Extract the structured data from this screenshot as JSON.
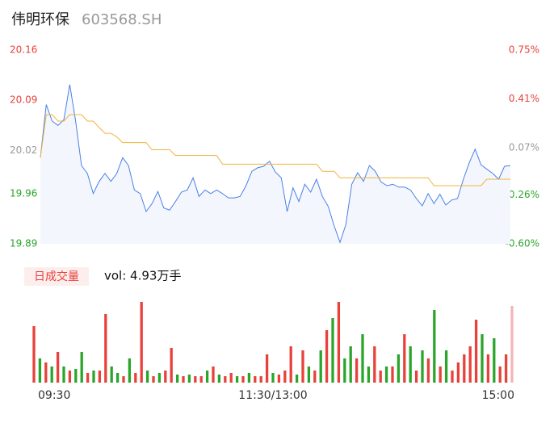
{
  "chart_data": [
    {
      "type": "line",
      "title": "伟明环保",
      "subtitle": "603568.SH",
      "x": [
        0,
        3,
        6,
        9,
        12,
        15,
        18,
        21,
        24,
        27,
        30,
        33,
        36,
        39,
        42,
        45,
        48,
        51,
        54,
        57,
        60,
        63,
        66,
        69,
        72,
        75,
        78,
        81,
        84,
        87,
        90,
        93,
        96,
        99,
        102,
        105,
        108,
        111,
        114,
        117,
        120,
        123,
        126,
        129,
        132,
        135,
        138,
        141,
        144,
        147,
        150,
        153,
        156,
        159,
        162,
        165,
        168,
        171,
        174,
        177,
        180,
        183,
        186,
        189,
        192,
        195,
        198,
        201,
        204,
        207,
        210,
        213,
        216,
        219,
        222,
        225,
        228,
        231,
        234,
        237,
        240
      ],
      "xlim": [
        0,
        240
      ],
      "series": [
        {
          "color": "#4a80e8",
          "values": [
            20.01,
            20.084,
            20.061,
            20.055,
            20.063,
            20.112,
            20.061,
            19.999,
            19.988,
            19.96,
            19.977,
            19.988,
            19.977,
            19.988,
            20.01,
            19.999,
            19.965,
            19.96,
            19.935,
            19.946,
            19.963,
            19.94,
            19.937,
            19.949,
            19.962,
            19.965,
            19.982,
            19.956,
            19.965,
            19.96,
            19.965,
            19.96,
            19.954,
            19.954,
            19.956,
            19.971,
            19.991,
            19.996,
            19.998,
            20.005,
            19.99,
            19.982,
            19.935,
            19.968,
            19.949,
            19.973,
            19.962,
            19.98,
            19.956,
            19.942,
            19.915,
            19.892,
            19.917,
            19.973,
            19.989,
            19.977,
            19.999,
            19.991,
            19.976,
            19.971,
            19.973,
            19.969,
            19.969,
            19.965,
            19.953,
            19.943,
            19.96,
            19.946,
            19.959,
            19.944,
            19.951,
            19.953,
            19.98,
            20.003,
            20.022,
            20.0,
            19.994,
            19.988,
            19.98,
            19.998,
            19.999
          ]
        },
        {
          "color": "#f0b43c",
          "values": [
            20.01,
            20.07,
            20.07,
            20.061,
            20.061,
            20.07,
            20.07,
            20.07,
            20.061,
            20.061,
            20.052,
            20.044,
            20.044,
            20.039,
            20.031,
            20.031,
            20.031,
            20.031,
            20.031,
            20.021,
            20.021,
            20.021,
            20.021,
            20.013,
            20.013,
            20.013,
            20.013,
            20.013,
            20.013,
            20.013,
            20.013,
            20.001,
            20.001,
            20.001,
            20.001,
            20.001,
            20.001,
            20.001,
            20.001,
            20.001,
            20.001,
            20.001,
            20.001,
            20.001,
            20.001,
            20.001,
            20.001,
            20.001,
            19.991,
            19.991,
            19.991,
            19.982,
            19.982,
            19.982,
            19.982,
            19.982,
            19.982,
            19.982,
            19.982,
            19.982,
            19.982,
            19.982,
            19.982,
            19.982,
            19.982,
            19.982,
            19.982,
            19.971,
            19.971,
            19.971,
            19.971,
            19.971,
            19.971,
            19.971,
            19.971,
            19.971,
            19.98,
            19.98,
            19.98,
            19.98,
            19.98
          ]
        }
      ],
      "ylim": [
        19.89,
        20.16
      ],
      "yticks": [
        20.16,
        20.09,
        20.02,
        19.96,
        19.89
      ],
      "y2lim": [
        -0.6,
        0.75
      ],
      "y2ticks": [
        {
          "value": 0.75,
          "label": "0.75%"
        },
        {
          "value": 0.41,
          "label": "0.41%"
        },
        {
          "value": 0.07,
          "label": "0.07%"
        },
        {
          "value": -0.26,
          "label": "-0.26%"
        },
        {
          "value": -0.6,
          "label": "-0.60%"
        }
      ],
      "tick_colors": {
        "up": "#e8413a",
        "flat": "#999999",
        "down": "#2aa52a"
      },
      "area": true
    },
    {
      "type": "bar",
      "title": "日成交量",
      "annotation": "vol: 4.93万手",
      "x": [
        0,
        3,
        6,
        9,
        12,
        15,
        18,
        21,
        24,
        27,
        30,
        33,
        36,
        39,
        42,
        45,
        48,
        51,
        54,
        57,
        60,
        63,
        66,
        69,
        72,
        75,
        78,
        81,
        84,
        87,
        90,
        93,
        96,
        99,
        102,
        105,
        108,
        111,
        114,
        117,
        120,
        123,
        126,
        129,
        132,
        135,
        138,
        141,
        144,
        147,
        150,
        153,
        156,
        159,
        162,
        165,
        168,
        171,
        174,
        177,
        180,
        183,
        186,
        189,
        192,
        195,
        198,
        201,
        204,
        207,
        210,
        213,
        216,
        219,
        222,
        225,
        228,
        231,
        234,
        237,
        240
      ],
      "xlim": [
        0,
        240
      ],
      "xticks": [
        {
          "value": 0,
          "label": "09:30"
        },
        {
          "value": 120,
          "label": "11:30/13:00"
        },
        {
          "value": 240,
          "label": "15:00"
        }
      ],
      "ylim": [
        0,
        1000
      ],
      "values": [
        700,
        300,
        250,
        200,
        380,
        200,
        150,
        170,
        380,
        120,
        150,
        150,
        850,
        200,
        120,
        80,
        300,
        120,
        1000,
        150,
        80,
        120,
        150,
        430,
        100,
        80,
        100,
        80,
        80,
        150,
        200,
        100,
        80,
        120,
        80,
        80,
        120,
        80,
        80,
        350,
        120,
        100,
        150,
        450,
        100,
        400,
        200,
        150,
        400,
        650,
        800,
        1000,
        300,
        450,
        300,
        600,
        200,
        450,
        150,
        200,
        200,
        350,
        600,
        450,
        150,
        400,
        300,
        900,
        200,
        400,
        150,
        250,
        350,
        450,
        780,
        600,
        350,
        550,
        200,
        350,
        950
      ],
      "colors": [
        "#e8413a",
        "#2aa52a",
        "#e8413a",
        "#2aa52a",
        "#e8413a",
        "#2aa52a",
        "#e8413a",
        "#2aa52a",
        "#2aa52a",
        "#e8413a",
        "#2aa52a",
        "#e8413a",
        "#e8413a",
        "#2aa52a",
        "#2aa52a",
        "#e8413a",
        "#2aa52a",
        "#e8413a",
        "#e8413a",
        "#2aa52a",
        "#e8413a",
        "#2aa52a",
        "#e8413a",
        "#e8413a",
        "#2aa52a",
        "#e8413a",
        "#2aa52a",
        "#e8413a",
        "#e8413a",
        "#2aa52a",
        "#e8413a",
        "#2aa52a",
        "#e8413a",
        "#e8413a",
        "#2aa52a",
        "#e8413a",
        "#2aa52a",
        "#e8413a",
        "#e8413a",
        "#e8413a",
        "#2aa52a",
        "#e8413a",
        "#e8413a",
        "#e8413a",
        "#2aa52a",
        "#e8413a",
        "#2aa52a",
        "#e8413a",
        "#2aa52a",
        "#e8413a",
        "#2aa52a",
        "#e8413a",
        "#2aa52a",
        "#2aa52a",
        "#e8413a",
        "#2aa52a",
        "#2aa52a",
        "#e8413a",
        "#e8413a",
        "#2aa52a",
        "#e8413a",
        "#2aa52a",
        "#e8413a",
        "#2aa52a",
        "#e8413a",
        "#2aa52a",
        "#e8413a",
        "#2aa52a",
        "#e8413a",
        "#2aa52a",
        "#e8413a",
        "#e8413a",
        "#e8413a",
        "#e8413a",
        "#e8413a",
        "#2aa52a",
        "#e8413a",
        "#2aa52a",
        "#e8413a",
        "#e8413a",
        "#f5b5b5"
      ]
    }
  ]
}
